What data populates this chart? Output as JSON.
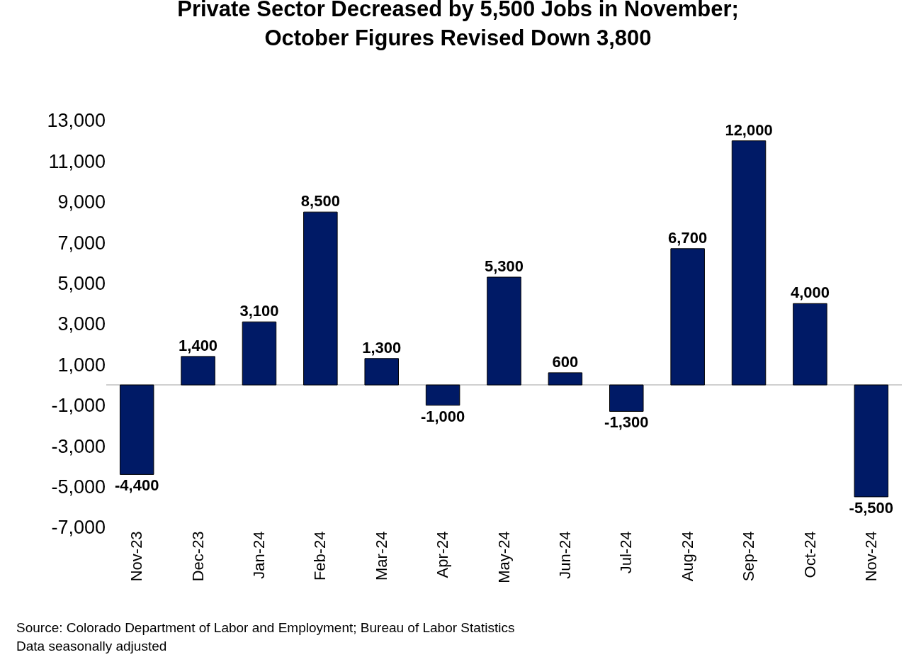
{
  "chart_data": {
    "type": "bar",
    "title": "Private Sector Decreased by 5,500 Jobs in November;\nOctober Figures Revised Down 3,800",
    "categories": [
      "Nov-23",
      "Dec-23",
      "Jan-24",
      "Feb-24",
      "Mar-24",
      "Apr-24",
      "May-24",
      "Jun-24",
      "Jul-24",
      "Aug-24",
      "Sep-24",
      "Oct-24",
      "Nov-24"
    ],
    "values": [
      -4400,
      1400,
      3100,
      8500,
      1300,
      -1000,
      5300,
      600,
      -1300,
      6700,
      12000,
      4000,
      -5500
    ],
    "color": "#001a66",
    "ylim": [
      -7000,
      13000
    ],
    "yticks": [
      {
        "value": -7000,
        "label": "-7,000"
      },
      {
        "value": -5000,
        "label": "-5,000"
      },
      {
        "value": -3000,
        "label": "-3,000"
      },
      {
        "value": -1000,
        "label": "-1,000"
      },
      {
        "value": 1000,
        "label": "1,000"
      },
      {
        "value": 3000,
        "label": "3,000"
      },
      {
        "value": 5000,
        "label": "5,000"
      },
      {
        "value": 7000,
        "label": "7,000"
      },
      {
        "value": 9000,
        "label": "9,000"
      },
      {
        "value": 11000,
        "label": "11,000"
      },
      {
        "value": 13000,
        "label": "13,000"
      }
    ],
    "value_labels": [
      "-4,400",
      "1,400",
      "3,100",
      "8,500",
      "1,300",
      "-1,000",
      "5,300",
      "600",
      "-1,300",
      "6,700",
      "12,000",
      "4,000",
      "-5,500"
    ],
    "annotations": [
      "Source: Colorado Department of Labor and Employment; Bureau of Labor Statistics",
      "Data seasonally adjusted"
    ]
  }
}
